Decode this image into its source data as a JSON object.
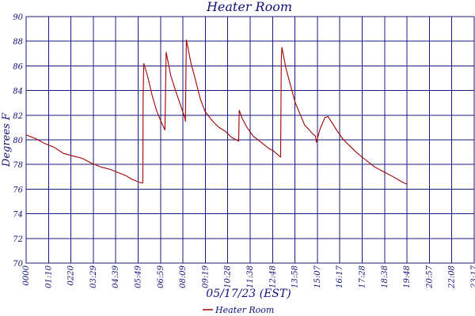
{
  "chart_data": {
    "type": "line",
    "title": "Heater Room",
    "xlabel": "05/17/23 (EST)",
    "ylabel": "Degrees F",
    "ylim": [
      70,
      90
    ],
    "yticks": [
      "70",
      "72",
      "74",
      "76",
      "78",
      "80",
      "82",
      "84",
      "86",
      "88",
      "90"
    ],
    "xlim": [
      "00:00",
      "24:00"
    ],
    "xticks": [
      "0000",
      "01:10",
      "0220",
      "03:29",
      "04:39",
      "05:49",
      "06:59",
      "08:09",
      "09:19",
      "10:28",
      "11:38",
      "12:48",
      "13:58",
      "15:07",
      "16:17",
      "17:28",
      "18:38",
      "19:48",
      "20:57",
      "22:08",
      "23:17"
    ],
    "grid": true,
    "legend_position": "bottom-center",
    "line_color": "#a00000",
    "grid_color": "#1a1a80",
    "text_color": "#10107a",
    "series": [
      {
        "name": "Heater Room",
        "points": [
          [
            "00:00",
            80.4
          ],
          [
            "00:30",
            80.1
          ],
          [
            "01:00",
            79.7
          ],
          [
            "01:30",
            79.4
          ],
          [
            "02:00",
            78.9
          ],
          [
            "02:30",
            78.7
          ],
          [
            "03:00",
            78.5
          ],
          [
            "03:30",
            78.1
          ],
          [
            "04:00",
            77.8
          ],
          [
            "04:30",
            77.6
          ],
          [
            "05:00",
            77.3
          ],
          [
            "05:20",
            77.1
          ],
          [
            "05:40",
            76.8
          ],
          [
            "06:00",
            76.6
          ],
          [
            "06:10",
            76.5
          ],
          [
            "06:15",
            76.5
          ],
          [
            "06:16",
            83.5
          ],
          [
            "06:18",
            86.2
          ],
          [
            "06:30",
            85.2
          ],
          [
            "06:45",
            83.6
          ],
          [
            "07:00",
            82.3
          ],
          [
            "07:15",
            81.4
          ],
          [
            "07:26",
            80.8
          ],
          [
            "07:27",
            82.3
          ],
          [
            "07:30",
            87.1
          ],
          [
            "07:45",
            85.2
          ],
          [
            "08:00",
            84.0
          ],
          [
            "08:15",
            82.9
          ],
          [
            "08:30",
            81.8
          ],
          [
            "08:32",
            81.5
          ],
          [
            "08:35",
            88.1
          ],
          [
            "08:50",
            86.2
          ],
          [
            "09:05",
            84.8
          ],
          [
            "09:20",
            83.3
          ],
          [
            "09:35",
            82.3
          ],
          [
            "10:00",
            81.5
          ],
          [
            "10:20",
            81.0
          ],
          [
            "10:40",
            80.7
          ],
          [
            "11:00",
            80.2
          ],
          [
            "11:15",
            80.0
          ],
          [
            "11:23",
            79.9
          ],
          [
            "11:25",
            82.4
          ],
          [
            "11:35",
            81.7
          ],
          [
            "11:50",
            81.0
          ],
          [
            "12:10",
            80.3
          ],
          [
            "12:30",
            79.9
          ],
          [
            "12:45",
            79.6
          ],
          [
            "13:00",
            79.3
          ],
          [
            "13:15",
            79.1
          ],
          [
            "13:28",
            78.8
          ],
          [
            "13:38",
            78.6
          ],
          [
            "13:40",
            86.5
          ],
          [
            "13:42",
            87.5
          ],
          [
            "13:55",
            85.8
          ],
          [
            "14:10",
            84.4
          ],
          [
            "14:25",
            83.0
          ],
          [
            "14:40",
            82.1
          ],
          [
            "14:55",
            81.2
          ],
          [
            "15:10",
            80.8
          ],
          [
            "15:20",
            80.5
          ],
          [
            "15:30",
            80.3
          ],
          [
            "15:33",
            79.8
          ],
          [
            "15:45",
            80.9
          ],
          [
            "16:00",
            81.8
          ],
          [
            "16:10",
            81.9
          ],
          [
            "16:20",
            81.5
          ],
          [
            "16:40",
            80.7
          ],
          [
            "17:00",
            80.0
          ],
          [
            "17:20",
            79.5
          ],
          [
            "17:45",
            78.9
          ],
          [
            "18:10",
            78.4
          ],
          [
            "18:40",
            77.8
          ],
          [
            "19:10",
            77.4
          ],
          [
            "19:40",
            77.0
          ],
          [
            "20:00",
            76.7
          ],
          [
            "20:15",
            76.5
          ],
          [
            "20:25",
            76.4
          ]
        ]
      }
    ]
  }
}
